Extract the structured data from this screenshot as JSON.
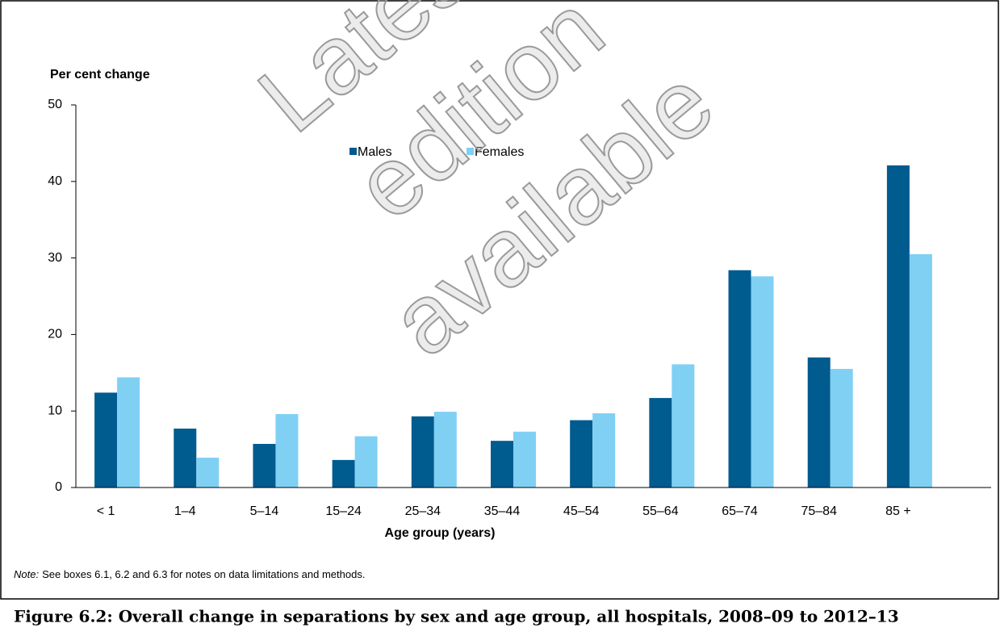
{
  "chart_data": {
    "type": "bar",
    "title": "Figure 6.2: Overall change in separations by sex and age group, all hospitals, 2008–09 to 2012–13",
    "y_label": "Per cent change",
    "x_label": "Age group (years)",
    "note": {
      "label": "Note:",
      "text": "See boxes 6.1, 6.2 and 6.3 for notes on data limitations and methods."
    },
    "watermark": [
      "Latest",
      "edition",
      "available"
    ],
    "categories": [
      "< 1",
      "1–4",
      "5–14",
      "15–24",
      "25–34",
      "35–44",
      "45–54",
      "55–64",
      "65–74",
      "75–84",
      "85 +"
    ],
    "series": [
      {
        "name": "Males",
        "color": "#005b8f",
        "values": [
          12.4,
          7.7,
          5.7,
          3.6,
          9.3,
          6.1,
          8.8,
          11.7,
          28.4,
          17.0,
          42.1
        ]
      },
      {
        "name": "Females",
        "color": "#80d0f4",
        "values": [
          14.4,
          3.9,
          9.6,
          6.7,
          9.9,
          7.3,
          9.7,
          16.1,
          27.6,
          15.5,
          30.5
        ]
      }
    ],
    "ylim": [
      0,
      50
    ],
    "yticks": [
      0,
      10,
      20,
      30,
      40,
      50
    ],
    "grid": false
  }
}
